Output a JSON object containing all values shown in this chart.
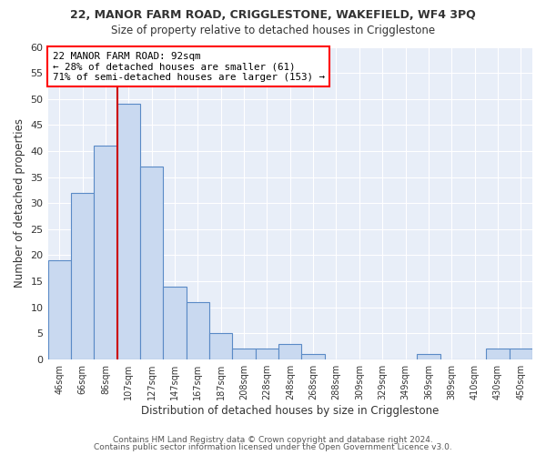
{
  "title": "22, MANOR FARM ROAD, CRIGGLESTONE, WAKEFIELD, WF4 3PQ",
  "subtitle": "Size of property relative to detached houses in Crigglestone",
  "xlabel": "Distribution of detached houses by size in Crigglestone",
  "ylabel": "Number of detached properties",
  "categories": [
    "46sqm",
    "66sqm",
    "86sqm",
    "107sqm",
    "127sqm",
    "147sqm",
    "167sqm",
    "187sqm",
    "208sqm",
    "228sqm",
    "248sqm",
    "268sqm",
    "288sqm",
    "309sqm",
    "329sqm",
    "349sqm",
    "369sqm",
    "389sqm",
    "410sqm",
    "430sqm",
    "450sqm"
  ],
  "values": [
    19,
    32,
    41,
    49,
    37,
    14,
    11,
    5,
    2,
    2,
    3,
    1,
    0,
    0,
    0,
    0,
    1,
    0,
    0,
    2,
    2
  ],
  "bar_color": "#c9d9f0",
  "bar_edge_color": "#5a8ac6",
  "bar_width": 1.0,
  "ylim": [
    0,
    60
  ],
  "yticks": [
    0,
    5,
    10,
    15,
    20,
    25,
    30,
    35,
    40,
    45,
    50,
    55,
    60
  ],
  "property_label": "22 MANOR FARM ROAD: 92sqm",
  "annotation_line1": "← 28% of detached houses are smaller (61)",
  "annotation_line2": "71% of semi-detached houses are larger (153) →",
  "annotation_box_color": "white",
  "annotation_box_edge_color": "red",
  "vline_color": "#cc0000",
  "vline_x_index": 2.5,
  "footer1": "Contains HM Land Registry data © Crown copyright and database right 2024.",
  "footer2": "Contains public sector information licensed under the Open Government Licence v3.0.",
  "fig_background_color": "#ffffff",
  "plot_background_color": "#e8eef8",
  "grid_color": "#ffffff",
  "title_color": "#333333",
  "label_color": "#333333",
  "tick_color": "#333333",
  "footer_color": "#555555"
}
